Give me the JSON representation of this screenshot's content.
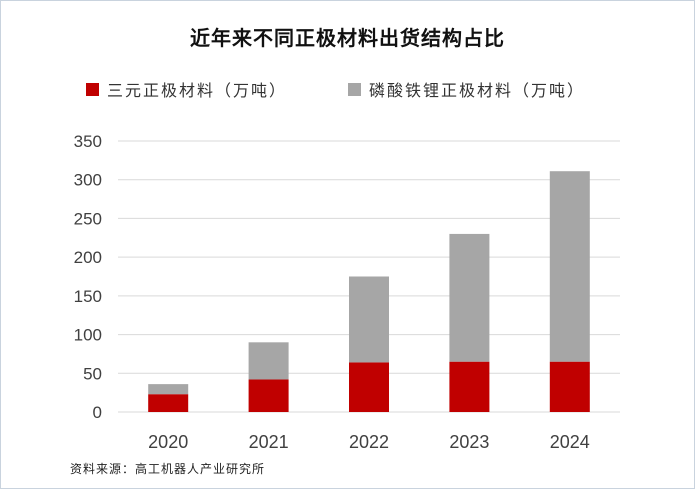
{
  "colors": {
    "red": "#c00000",
    "gray": "#a6a6a6",
    "grid": "#d9d9d9",
    "axis_text": "#404040"
  },
  "chart_data": {
    "type": "bar",
    "stacked": true,
    "title": "近年来不同正极材料出货结构占比",
    "categories": [
      "2020",
      "2021",
      "2022",
      "2023",
      "2024"
    ],
    "series": [
      {
        "name": "三元正极材料（万吨）",
        "color": "#c00000",
        "values": [
          23,
          42,
          64,
          65,
          65
        ]
      },
      {
        "name": "磷酸铁锂正极材料（万吨）",
        "color": "#a6a6a6",
        "values": [
          13,
          48,
          111,
          165,
          246
        ]
      }
    ],
    "ylim": [
      0,
      350
    ],
    "yticks": [
      "0",
      "50",
      "100",
      "150",
      "200",
      "250",
      "300",
      "350"
    ],
    "grid": true,
    "legend": "top"
  },
  "source": "资料来源：高工机器人产业研究所"
}
